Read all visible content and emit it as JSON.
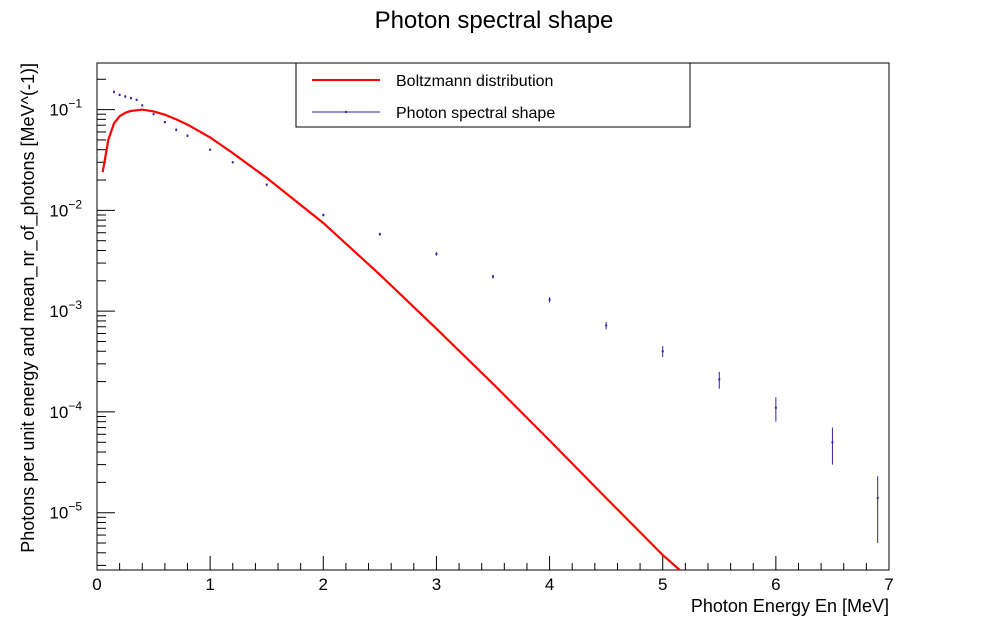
{
  "chart_data": {
    "type": "line",
    "title": "Photon spectral shape",
    "xlabel": "Photon Energy En [MeV]",
    "ylabel": "Photons per unit energy and mean_nr_of_photons [MeV^(-1)]",
    "xlim": [
      0,
      7
    ],
    "ylim": [
      2.7e-06,
      0.29
    ],
    "yscale": "log",
    "grid": false,
    "legend_position": "top-center",
    "x_ticks": [
      {
        "value": 0,
        "label": "0"
      },
      {
        "value": 1,
        "label": "1"
      },
      {
        "value": 2,
        "label": "2"
      },
      {
        "value": 3,
        "label": "3"
      },
      {
        "value": 4,
        "label": "4"
      },
      {
        "value": 5,
        "label": "5"
      },
      {
        "value": 6,
        "label": "6"
      },
      {
        "value": 7,
        "label": "7"
      }
    ],
    "y_ticks": [
      {
        "value": 0.1,
        "base": "10",
        "exp": "−1"
      },
      {
        "value": 0.01,
        "base": "10",
        "exp": "−2"
      },
      {
        "value": 0.001,
        "base": "10",
        "exp": "−3"
      },
      {
        "value": 0.0001,
        "base": "10",
        "exp": "−4"
      },
      {
        "value": 1e-05,
        "base": "10",
        "exp": "−5"
      }
    ],
    "series": [
      {
        "name": "Boltzmann distribution",
        "color": "#ff0000",
        "style": "line",
        "x": [
          0.05,
          0.1,
          0.15,
          0.2,
          0.25,
          0.3,
          0.4,
          0.5,
          0.6,
          0.7,
          0.8,
          1.0,
          1.2,
          1.5,
          2.0,
          2.5,
          3.0,
          3.5,
          4.0,
          4.5,
          5.0,
          5.15
        ],
        "y": [
          0.024,
          0.05,
          0.073,
          0.086,
          0.093,
          0.097,
          0.1,
          0.096,
          0.089,
          0.08,
          0.071,
          0.053,
          0.037,
          0.021,
          0.0075,
          0.0023,
          0.00067,
          0.00019,
          5.2e-05,
          1.4e-05,
          3.8e-06,
          2.7e-06
        ]
      },
      {
        "name": "Photon spectral shape",
        "color": "#3324a8",
        "style": "points-errorbars",
        "x": [
          0.15,
          0.2,
          0.25,
          0.3,
          0.35,
          0.4,
          0.5,
          0.6,
          0.7,
          0.8,
          1.0,
          1.2,
          1.5,
          2.0,
          2.5,
          3.0,
          3.5,
          4.0,
          4.5,
          5.0,
          5.5,
          6.0,
          6.5,
          6.9
        ],
        "y": [
          0.15,
          0.14,
          0.135,
          0.13,
          0.125,
          0.11,
          0.09,
          0.075,
          0.063,
          0.055,
          0.04,
          0.03,
          0.018,
          0.009,
          0.0058,
          0.0037,
          0.0022,
          0.0013,
          0.00072,
          0.0004,
          0.00021,
          0.00011,
          5e-05,
          1.4e-05
        ],
        "err": [
          0.004,
          0.004,
          0.004,
          0.004,
          0.003,
          0.003,
          0.002,
          0.002,
          0.002,
          0.0015,
          0.001,
          0.0008,
          0.0005,
          0.0003,
          0.0002,
          0.00015,
          0.0001,
          8e-05,
          6e-05,
          5e-05,
          4e-05,
          3e-05,
          2e-05,
          9e-06
        ]
      }
    ]
  }
}
